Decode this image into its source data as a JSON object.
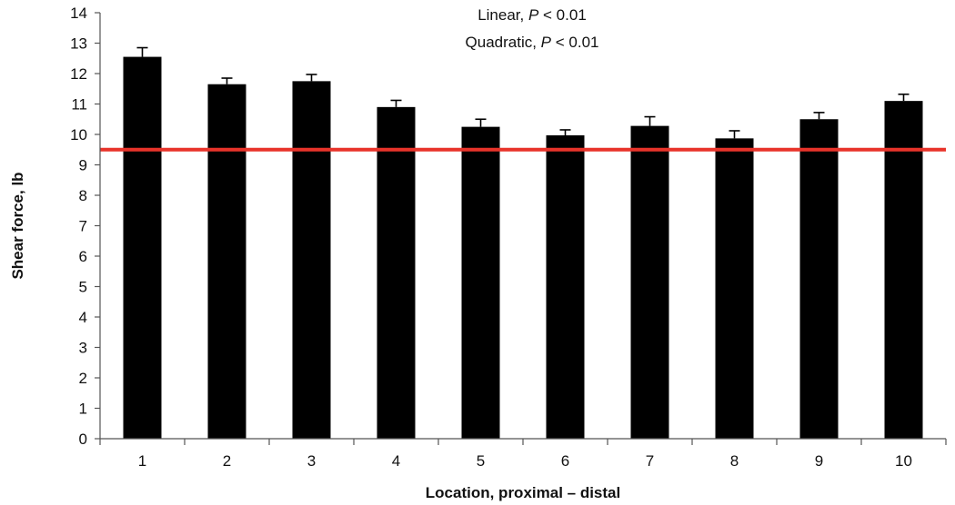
{
  "chart_data": {
    "type": "bar",
    "categories": [
      "1",
      "2",
      "3",
      "4",
      "5",
      "6",
      "7",
      "8",
      "9",
      "10"
    ],
    "values": [
      12.55,
      11.65,
      11.75,
      10.9,
      10.25,
      9.97,
      10.28,
      9.87,
      10.5,
      11.1
    ],
    "errors": [
      0.3,
      0.2,
      0.22,
      0.22,
      0.25,
      0.18,
      0.3,
      0.25,
      0.22,
      0.22
    ],
    "xlabel": "Location, proximal – distal",
    "ylabel": "Shear force, lb",
    "ylim": [
      0,
      14
    ],
    "yticks": [
      "0",
      "1",
      "2",
      "3",
      "4",
      "5",
      "6",
      "7",
      "8",
      "9",
      "10",
      "11",
      "12",
      "13",
      "14"
    ],
    "reference_line": {
      "value": 9.5,
      "color": "#e8332a"
    },
    "bar_color": "#000000",
    "grid": false,
    "legend": "none",
    "annotations": [
      {
        "prefix": "Linear, ",
        "italic": "P",
        "suffix": " < 0.01"
      },
      {
        "prefix": "Quadratic, ",
        "italic": "P",
        "suffix": " < 0.01"
      }
    ]
  }
}
